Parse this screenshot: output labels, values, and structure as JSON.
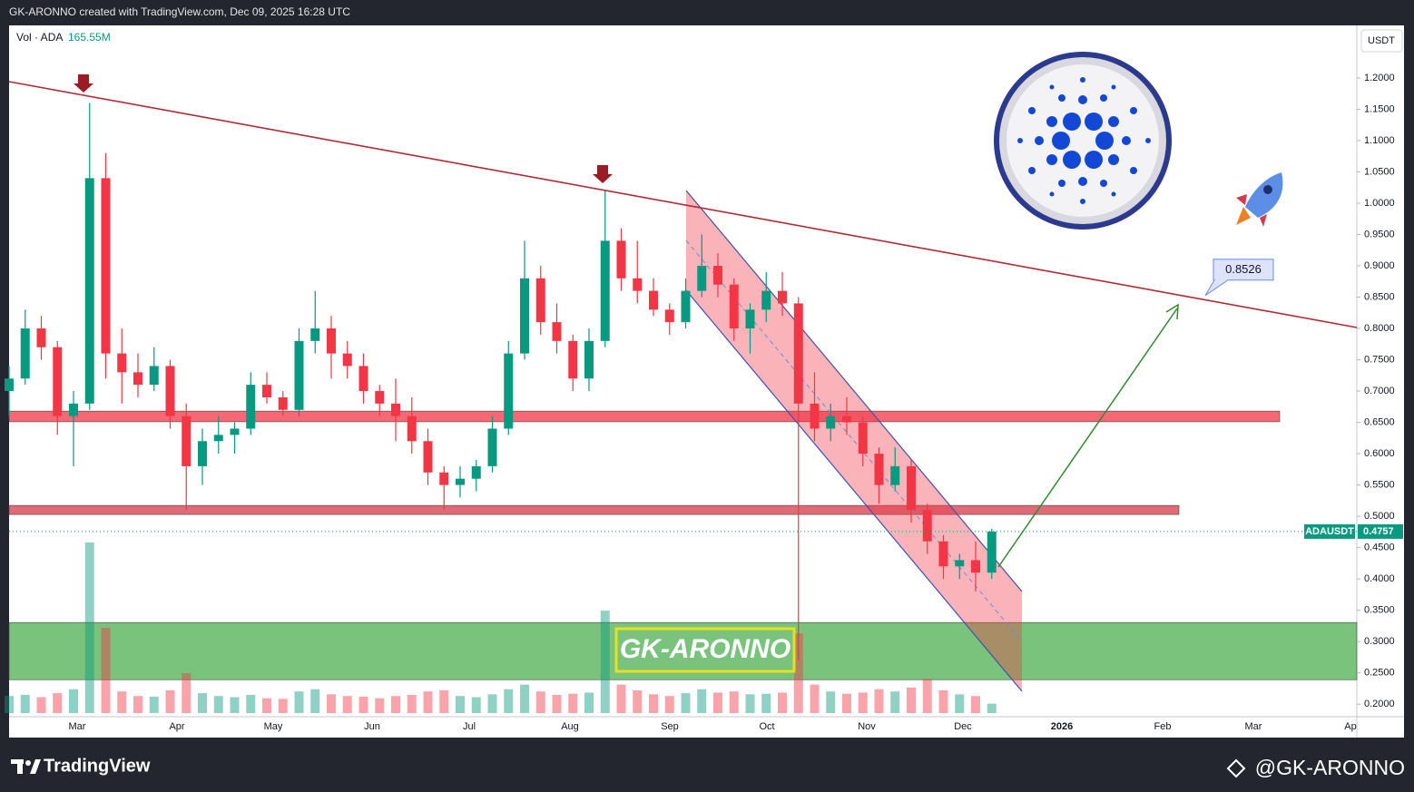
{
  "header": {
    "caption": "GK-ARONNO created with TradingView.com, Dec 09, 2025 16:28 UTC"
  },
  "footer": {
    "brand": "TradingView",
    "author": "@GK-ARONNO"
  },
  "chart_data": {
    "type": "candlestick",
    "symbol": "ADAUSDT",
    "currency": "USDT",
    "volume_title": "Vol · ADA",
    "volume_label": "165.55M",
    "up_color": "#089981",
    "down_color": "#f23645",
    "ylim": [
      0.18,
      1.281
    ],
    "yticks": [
      {
        "value": 0.2,
        "label": "0.2000"
      },
      {
        "value": 0.25,
        "label": "0.2500"
      },
      {
        "value": 0.3,
        "label": "0.3000"
      },
      {
        "value": 0.35,
        "label": "0.3500"
      },
      {
        "value": 0.4,
        "label": "0.4000"
      },
      {
        "value": 0.45,
        "label": "0.4500"
      },
      {
        "value": 0.5,
        "label": "0.5000"
      },
      {
        "value": 0.55,
        "label": "0.5500"
      },
      {
        "value": 0.6,
        "label": "0.6000"
      },
      {
        "value": 0.65,
        "label": "0.6500"
      },
      {
        "value": 0.7,
        "label": "0.7000"
      },
      {
        "value": 0.75,
        "label": "0.7500"
      },
      {
        "value": 0.8,
        "label": "0.8000"
      },
      {
        "value": 0.85,
        "label": "0.8500"
      },
      {
        "value": 0.9,
        "label": "0.9000"
      },
      {
        "value": 0.95,
        "label": "0.9500"
      },
      {
        "value": 1.0,
        "label": "1.0000"
      },
      {
        "value": 1.05,
        "label": "1.0500"
      },
      {
        "value": 1.1,
        "label": "1.1000"
      },
      {
        "value": 1.15,
        "label": "1.1500"
      },
      {
        "value": 1.2,
        "label": "1.2000"
      }
    ],
    "grid": false,
    "x_labels": [
      "Mar",
      "Apr",
      "May",
      "Jun",
      "Jul",
      "Aug",
      "Sep",
      "Oct",
      "Nov",
      "Dec",
      "2026",
      "Feb",
      "Mar",
      "Ap"
    ],
    "ohlc": [
      [
        0.7,
        0.74,
        0.66,
        0.72
      ],
      [
        0.72,
        0.83,
        0.71,
        0.8
      ],
      [
        0.8,
        0.82,
        0.75,
        0.77
      ],
      [
        0.77,
        0.78,
        0.63,
        0.66
      ],
      [
        0.66,
        0.7,
        0.58,
        0.68
      ],
      [
        0.68,
        1.16,
        0.67,
        1.04
      ],
      [
        1.04,
        1.08,
        0.72,
        0.76
      ],
      [
        0.76,
        0.8,
        0.68,
        0.73
      ],
      [
        0.73,
        0.76,
        0.69,
        0.71
      ],
      [
        0.71,
        0.77,
        0.7,
        0.74
      ],
      [
        0.74,
        0.75,
        0.64,
        0.66
      ],
      [
        0.66,
        0.68,
        0.51,
        0.58
      ],
      [
        0.58,
        0.64,
        0.55,
        0.62
      ],
      [
        0.62,
        0.66,
        0.6,
        0.63
      ],
      [
        0.63,
        0.65,
        0.6,
        0.64
      ],
      [
        0.64,
        0.73,
        0.63,
        0.71
      ],
      [
        0.71,
        0.73,
        0.68,
        0.69
      ],
      [
        0.69,
        0.7,
        0.66,
        0.67
      ],
      [
        0.67,
        0.8,
        0.66,
        0.78
      ],
      [
        0.78,
        0.86,
        0.76,
        0.8
      ],
      [
        0.8,
        0.82,
        0.72,
        0.76
      ],
      [
        0.76,
        0.78,
        0.72,
        0.74
      ],
      [
        0.74,
        0.76,
        0.68,
        0.7
      ],
      [
        0.7,
        0.71,
        0.66,
        0.68
      ],
      [
        0.68,
        0.72,
        0.62,
        0.66
      ],
      [
        0.66,
        0.69,
        0.6,
        0.62
      ],
      [
        0.62,
        0.64,
        0.55,
        0.57
      ],
      [
        0.57,
        0.58,
        0.51,
        0.55
      ],
      [
        0.55,
        0.58,
        0.53,
        0.56
      ],
      [
        0.56,
        0.59,
        0.54,
        0.58
      ],
      [
        0.58,
        0.66,
        0.57,
        0.64
      ],
      [
        0.64,
        0.78,
        0.63,
        0.76
      ],
      [
        0.76,
        0.94,
        0.75,
        0.88
      ],
      [
        0.88,
        0.9,
        0.79,
        0.81
      ],
      [
        0.81,
        0.84,
        0.76,
        0.78
      ],
      [
        0.78,
        0.79,
        0.7,
        0.72
      ],
      [
        0.72,
        0.8,
        0.7,
        0.78
      ],
      [
        0.78,
        1.02,
        0.77,
        0.94
      ],
      [
        0.94,
        0.96,
        0.86,
        0.88
      ],
      [
        0.88,
        0.94,
        0.84,
        0.86
      ],
      [
        0.86,
        0.88,
        0.82,
        0.83
      ],
      [
        0.83,
        0.84,
        0.79,
        0.81
      ],
      [
        0.81,
        0.88,
        0.8,
        0.86
      ],
      [
        0.86,
        0.95,
        0.85,
        0.9
      ],
      [
        0.9,
        0.92,
        0.85,
        0.87
      ],
      [
        0.87,
        0.88,
        0.78,
        0.8
      ],
      [
        0.8,
        0.84,
        0.76,
        0.83
      ],
      [
        0.83,
        0.89,
        0.81,
        0.86
      ],
      [
        0.86,
        0.89,
        0.82,
        0.84
      ],
      [
        0.84,
        0.85,
        0.27,
        0.68
      ],
      [
        0.68,
        0.73,
        0.62,
        0.64
      ],
      [
        0.64,
        0.68,
        0.62,
        0.66
      ],
      [
        0.66,
        0.69,
        0.63,
        0.65
      ],
      [
        0.65,
        0.66,
        0.58,
        0.6
      ],
      [
        0.6,
        0.61,
        0.52,
        0.55
      ],
      [
        0.55,
        0.61,
        0.54,
        0.58
      ],
      [
        0.58,
        0.59,
        0.49,
        0.51
      ],
      [
        0.51,
        0.52,
        0.44,
        0.46
      ],
      [
        0.46,
        0.47,
        0.4,
        0.42
      ],
      [
        0.42,
        0.44,
        0.4,
        0.43
      ],
      [
        0.43,
        0.46,
        0.38,
        0.41
      ],
      [
        0.41,
        0.48,
        0.4,
        0.4757
      ]
    ],
    "volume": [
      300,
      320,
      280,
      350,
      420,
      3000,
      1500,
      380,
      300,
      290,
      400,
      700,
      350,
      300,
      280,
      320,
      260,
      250,
      380,
      420,
      330,
      300,
      290,
      260,
      300,
      320,
      380,
      400,
      300,
      280,
      330,
      420,
      500,
      380,
      320,
      340,
      360,
      1800,
      500,
      400,
      330,
      300,
      350,
      420,
      360,
      380,
      330,
      340,
      360,
      1400,
      500,
      380,
      340,
      360,
      420,
      380,
      450,
      600,
      400,
      330,
      300,
      165.55
    ],
    "zones": [
      {
        "low": 0.651,
        "high": 0.668,
        "color": "#f23645"
      },
      {
        "low": 0.5029,
        "high": 0.5174,
        "color": "#d43a48"
      },
      {
        "low": 0.2391,
        "high": 0.3304,
        "color": "#4caf50"
      }
    ],
    "target": 0.8526,
    "watermark": "GK-ARONNO"
  }
}
